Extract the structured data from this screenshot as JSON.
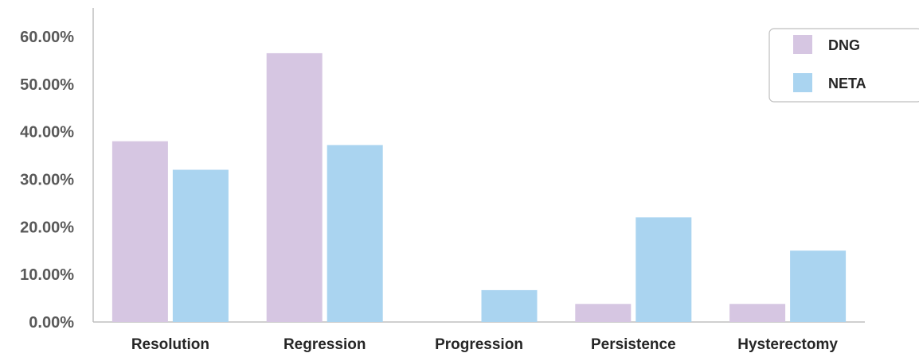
{
  "chart_data": {
    "type": "bar",
    "title": "",
    "xlabel": "",
    "ylabel": "",
    "categories": [
      "Resolution",
      "Regression",
      "Progression",
      "Persistence",
      "Hysterectomy"
    ],
    "series": [
      {
        "name": "DNG",
        "values": [
          38.0,
          56.5,
          0.0,
          3.8,
          3.8
        ]
      },
      {
        "name": "NETA",
        "values": [
          32.0,
          37.2,
          6.7,
          22.0,
          15.0
        ]
      }
    ],
    "ylim": [
      0,
      60
    ],
    "yticks": [
      0,
      10,
      20,
      30,
      40,
      50,
      60
    ],
    "ytick_labels": [
      "0.00%",
      "10.00%",
      "20.00%",
      "30.00%",
      "40.00%",
      "50.00%",
      "60.00%"
    ],
    "colors": {
      "DNG": "#d6c6e2",
      "NETA": "#aad4f0"
    },
    "grid": false,
    "legend_position": "top-right"
  }
}
